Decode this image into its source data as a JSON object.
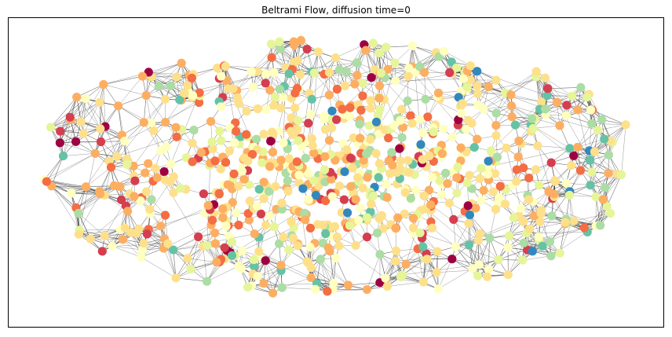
{
  "figure": {
    "title": "Beltrami Flow, diffusion time=0"
  },
  "colors": {
    "frame": "#000000",
    "edge": "#2b2b2b",
    "background": "#ffffff",
    "colormap": "Spectral",
    "palette": [
      "#9e0142",
      "#d53e4f",
      "#f46d43",
      "#fdae61",
      "#fee08b",
      "#ffffbf",
      "#e6f598",
      "#abdda4",
      "#66c2a5",
      "#3288bd"
    ]
  },
  "chart_data": {
    "type": "network-graph",
    "title": "Beltrami Flow, diffusion time=0",
    "node_colormap": "Spectral",
    "color_distribution": {
      "#fee08b": 0.26,
      "#fdae61": 0.18,
      "#ffffbf": 0.16,
      "#e6f598": 0.13,
      "#abdda4": 0.08,
      "#f46d43": 0.08,
      "#d53e4f": 0.04,
      "#66c2a5": 0.03,
      "#9e0142": 0.02,
      "#3288bd": 0.02
    },
    "node_count": 900,
    "edges_per_node": 5,
    "xlabel": "",
    "ylabel": "",
    "axes_visible": false,
    "grid": false,
    "legend": "none"
  }
}
